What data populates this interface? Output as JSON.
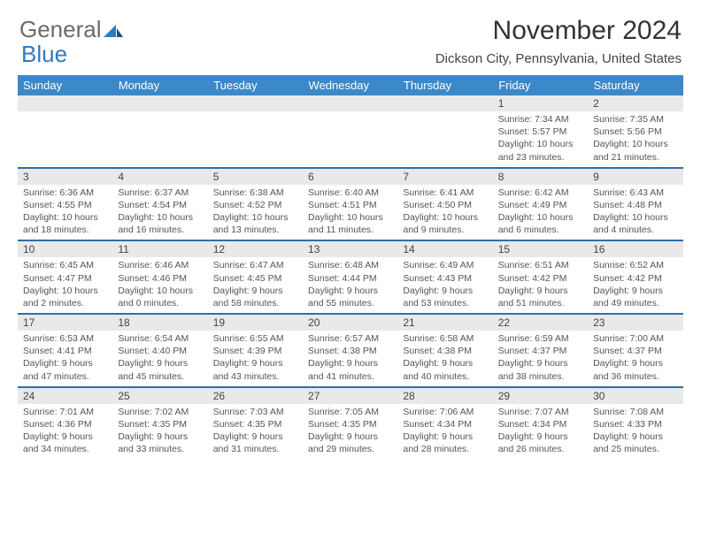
{
  "logo": {
    "text1": "General",
    "text2": "Blue"
  },
  "title": "November 2024",
  "location": "Dickson City, Pennsylvania, United States",
  "colors": {
    "header_bg": "#3b89c9",
    "daynum_bg": "#e9e9e9",
    "row_divider": "#2f6fa8",
    "logo_gray": "#6b6b6b",
    "logo_blue": "#2f7bbf"
  },
  "day_headers": [
    "Sunday",
    "Monday",
    "Tuesday",
    "Wednesday",
    "Thursday",
    "Friday",
    "Saturday"
  ],
  "weeks": [
    [
      null,
      null,
      null,
      null,
      null,
      {
        "n": "1",
        "sr": "7:34 AM",
        "ss": "5:57 PM",
        "dl": "10 hours and 23 minutes."
      },
      {
        "n": "2",
        "sr": "7:35 AM",
        "ss": "5:56 PM",
        "dl": "10 hours and 21 minutes."
      }
    ],
    [
      {
        "n": "3",
        "sr": "6:36 AM",
        "ss": "4:55 PM",
        "dl": "10 hours and 18 minutes."
      },
      {
        "n": "4",
        "sr": "6:37 AM",
        "ss": "4:54 PM",
        "dl": "10 hours and 16 minutes."
      },
      {
        "n": "5",
        "sr": "6:38 AM",
        "ss": "4:52 PM",
        "dl": "10 hours and 13 minutes."
      },
      {
        "n": "6",
        "sr": "6:40 AM",
        "ss": "4:51 PM",
        "dl": "10 hours and 11 minutes."
      },
      {
        "n": "7",
        "sr": "6:41 AM",
        "ss": "4:50 PM",
        "dl": "10 hours and 9 minutes."
      },
      {
        "n": "8",
        "sr": "6:42 AM",
        "ss": "4:49 PM",
        "dl": "10 hours and 6 minutes."
      },
      {
        "n": "9",
        "sr": "6:43 AM",
        "ss": "4:48 PM",
        "dl": "10 hours and 4 minutes."
      }
    ],
    [
      {
        "n": "10",
        "sr": "6:45 AM",
        "ss": "4:47 PM",
        "dl": "10 hours and 2 minutes."
      },
      {
        "n": "11",
        "sr": "6:46 AM",
        "ss": "4:46 PM",
        "dl": "10 hours and 0 minutes."
      },
      {
        "n": "12",
        "sr": "6:47 AM",
        "ss": "4:45 PM",
        "dl": "9 hours and 58 minutes."
      },
      {
        "n": "13",
        "sr": "6:48 AM",
        "ss": "4:44 PM",
        "dl": "9 hours and 55 minutes."
      },
      {
        "n": "14",
        "sr": "6:49 AM",
        "ss": "4:43 PM",
        "dl": "9 hours and 53 minutes."
      },
      {
        "n": "15",
        "sr": "6:51 AM",
        "ss": "4:42 PM",
        "dl": "9 hours and 51 minutes."
      },
      {
        "n": "16",
        "sr": "6:52 AM",
        "ss": "4:42 PM",
        "dl": "9 hours and 49 minutes."
      }
    ],
    [
      {
        "n": "17",
        "sr": "6:53 AM",
        "ss": "4:41 PM",
        "dl": "9 hours and 47 minutes."
      },
      {
        "n": "18",
        "sr": "6:54 AM",
        "ss": "4:40 PM",
        "dl": "9 hours and 45 minutes."
      },
      {
        "n": "19",
        "sr": "6:55 AM",
        "ss": "4:39 PM",
        "dl": "9 hours and 43 minutes."
      },
      {
        "n": "20",
        "sr": "6:57 AM",
        "ss": "4:38 PM",
        "dl": "9 hours and 41 minutes."
      },
      {
        "n": "21",
        "sr": "6:58 AM",
        "ss": "4:38 PM",
        "dl": "9 hours and 40 minutes."
      },
      {
        "n": "22",
        "sr": "6:59 AM",
        "ss": "4:37 PM",
        "dl": "9 hours and 38 minutes."
      },
      {
        "n": "23",
        "sr": "7:00 AM",
        "ss": "4:37 PM",
        "dl": "9 hours and 36 minutes."
      }
    ],
    [
      {
        "n": "24",
        "sr": "7:01 AM",
        "ss": "4:36 PM",
        "dl": "9 hours and 34 minutes."
      },
      {
        "n": "25",
        "sr": "7:02 AM",
        "ss": "4:35 PM",
        "dl": "9 hours and 33 minutes."
      },
      {
        "n": "26",
        "sr": "7:03 AM",
        "ss": "4:35 PM",
        "dl": "9 hours and 31 minutes."
      },
      {
        "n": "27",
        "sr": "7:05 AM",
        "ss": "4:35 PM",
        "dl": "9 hours and 29 minutes."
      },
      {
        "n": "28",
        "sr": "7:06 AM",
        "ss": "4:34 PM",
        "dl": "9 hours and 28 minutes."
      },
      {
        "n": "29",
        "sr": "7:07 AM",
        "ss": "4:34 PM",
        "dl": "9 hours and 26 minutes."
      },
      {
        "n": "30",
        "sr": "7:08 AM",
        "ss": "4:33 PM",
        "dl": "9 hours and 25 minutes."
      }
    ]
  ],
  "labels": {
    "sunrise": "Sunrise:",
    "sunset": "Sunset:",
    "daylight": "Daylight:"
  }
}
